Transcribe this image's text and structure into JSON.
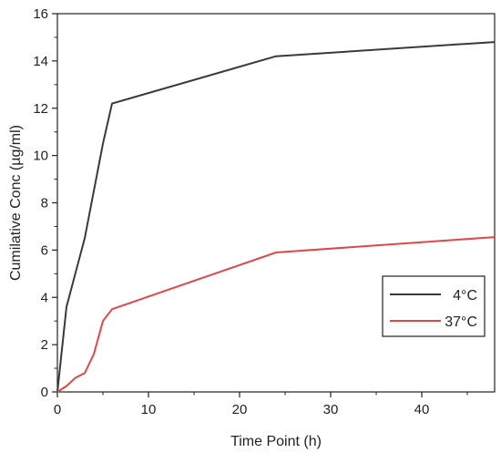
{
  "chart_data": {
    "type": "line",
    "title": "",
    "xlabel": "Time Point (h)",
    "ylabel": "Cumilative Conc (µg/ml)",
    "xlim": [
      0,
      48
    ],
    "ylim": [
      0,
      16
    ],
    "x_ticks": [
      0,
      10,
      20,
      30,
      40
    ],
    "y_ticks": [
      0,
      2,
      4,
      6,
      8,
      10,
      12,
      14,
      16
    ],
    "grid": false,
    "legend_position": "bottom-right",
    "series": [
      {
        "name": "4°C",
        "color": "#3a3a3a",
        "x": [
          0,
          1,
          3,
          5,
          6,
          24,
          48
        ],
        "y": [
          0,
          3.6,
          6.5,
          10.5,
          12.2,
          14.2,
          14.8
        ]
      },
      {
        "name": "37°C",
        "color": "#e04848",
        "x": [
          0,
          1,
          2,
          3,
          4,
          5,
          6,
          24,
          48
        ],
        "y": [
          0,
          0.25,
          0.6,
          0.8,
          1.6,
          3.0,
          3.5,
          5.9,
          6.55
        ]
      }
    ]
  }
}
